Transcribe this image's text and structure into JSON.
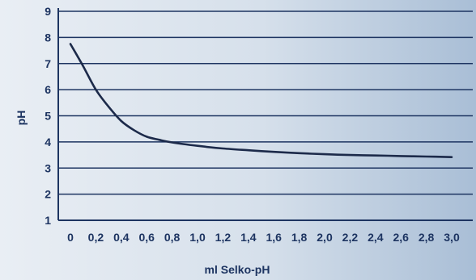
{
  "chart_data": {
    "type": "line",
    "title": "",
    "xlabel": "ml Selko-pH",
    "ylabel": "pH",
    "xlim": [
      0,
      3.0
    ],
    "ylim": [
      1,
      9
    ],
    "grid": true,
    "x_ticks": [
      "0",
      "0,2",
      "0,4",
      "0,6",
      "0,8",
      "1,0",
      "1,2",
      "1,4",
      "1,6",
      "1,8",
      "2,0",
      "2,2",
      "2,4",
      "2,6",
      "2,8",
      "3,0"
    ],
    "y_ticks": [
      "1",
      "2",
      "3",
      "4",
      "5",
      "6",
      "7",
      "8",
      "9"
    ],
    "series": [
      {
        "x": [
          0,
          0.1,
          0.2,
          0.3,
          0.4,
          0.5,
          0.6,
          0.7,
          0.8,
          1.0,
          1.2,
          1.4,
          1.6,
          1.8,
          2.0,
          2.2,
          2.4,
          2.6,
          2.8,
          3.0
        ],
        "y": [
          7.75,
          6.9,
          6.0,
          5.35,
          4.8,
          4.45,
          4.2,
          4.08,
          3.98,
          3.85,
          3.75,
          3.68,
          3.62,
          3.57,
          3.53,
          3.5,
          3.48,
          3.46,
          3.44,
          3.42
        ]
      }
    ],
    "colors": {
      "line": "#1c2a4a",
      "grid": "#1d3461",
      "axis": "#1d3461",
      "text": "#1d3461",
      "background_left": "#e9eef4",
      "background_right": "#a9bed6"
    }
  }
}
